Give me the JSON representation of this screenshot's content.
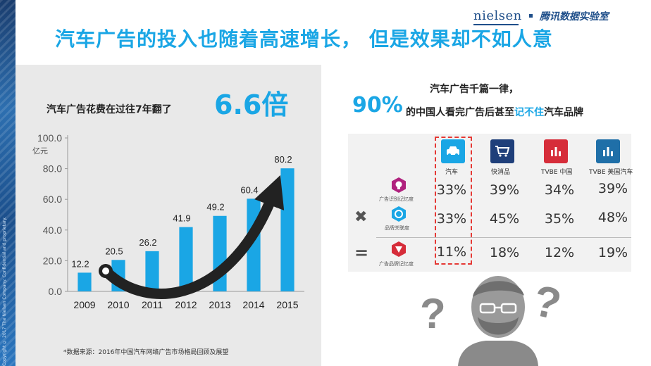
{
  "header": {
    "title": "汽车广告的投入也随着高速增长， 但是效果却不如人意",
    "logo_nielsen": "nielsen",
    "logo_lab": "腾讯数据实验室",
    "copyright": "Copyright © 2017 The Nielsen Company. Confidential and proprietary."
  },
  "left": {
    "subtitle": "汽车广告花费在过往7年翻了",
    "multiplier": "6.6倍",
    "footnote": "*数据来源：2016年中国汽车网络广告市场格局回顾及展望"
  },
  "chart_data": {
    "type": "bar",
    "categories": [
      "2009",
      "2010",
      "2011",
      "2012",
      "2013",
      "2014",
      "2015"
    ],
    "values": [
      12.2,
      20.5,
      26.2,
      41.9,
      49.2,
      60.4,
      80.2
    ],
    "yticks": [
      "0.0",
      "20.0",
      "40.0",
      "60.0",
      "80.0",
      "100.0"
    ],
    "ylabel": "亿元",
    "ylim": [
      0,
      100
    ],
    "bar_color": "#1aa6e5",
    "grid": false
  },
  "right": {
    "line1": "汽车广告千篇一律，",
    "pct": "90%",
    "line2_a": "的中国人看完广告后甚至",
    "line2_hl": "记不住",
    "line2_b": "汽车品牌",
    "columns": [
      {
        "label": "汽车",
        "icon": "car-icon",
        "color": "#1aa6e5"
      },
      {
        "label": "快消品",
        "icon": "shopping-cart-icon",
        "color": "#1f3f7a"
      },
      {
        "label": "TVBE 中国",
        "icon": "bar-chart-icon",
        "color": "#d62d3a"
      },
      {
        "label": "TVBE 美国汽车",
        "icon": "bar-chart-icon",
        "color": "#1f6fa8"
      }
    ],
    "rows": [
      {
        "label": "广告识别记忆度",
        "icon": "brain-icon",
        "color": "#b0227e",
        "values": [
          "33%",
          "39%",
          "34%",
          "39%"
        ]
      },
      {
        "label": "品牌关联度",
        "icon": "link-icon",
        "color": "#1aa6e5",
        "values": [
          "33%",
          "45%",
          "35%",
          "48%"
        ]
      },
      {
        "label": "广告品牌记忆度",
        "icon": "target-icon",
        "color": "#d62d3a",
        "values": [
          "11%",
          "18%",
          "12%",
          "19%"
        ]
      }
    ],
    "op_times": "✖",
    "op_equals": "="
  }
}
